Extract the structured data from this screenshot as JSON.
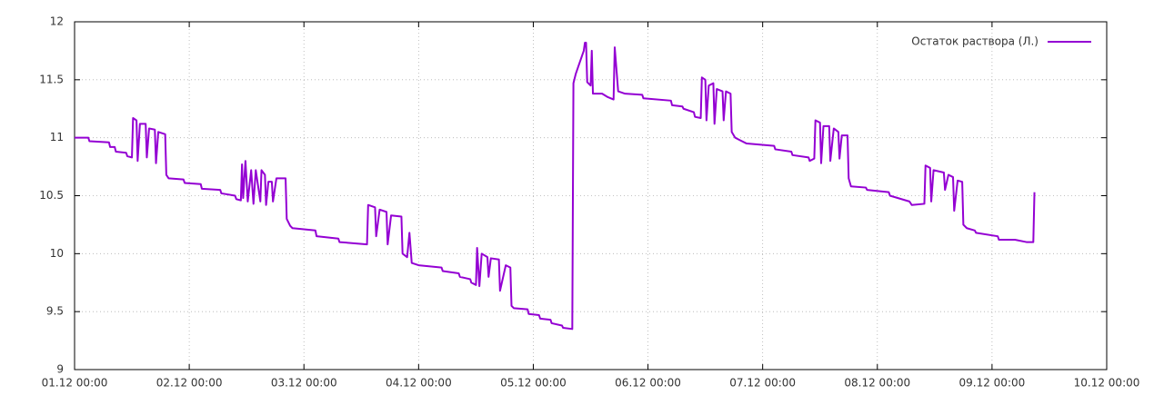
{
  "chart_data": {
    "type": "line",
    "legend": "top-right",
    "grid": true,
    "xlim": [
      0,
      9
    ],
    "xticks": [
      {
        "value": 0,
        "label": "01.12 00:00"
      },
      {
        "value": 1,
        "label": "02.12 00:00"
      },
      {
        "value": 2,
        "label": "03.12 00:00"
      },
      {
        "value": 3,
        "label": "04.12 00:00"
      },
      {
        "value": 4,
        "label": "05.12 00:00"
      },
      {
        "value": 5,
        "label": "06.12 00:00"
      },
      {
        "value": 6,
        "label": "07.12 00:00"
      },
      {
        "value": 7,
        "label": "08.12 00:00"
      },
      {
        "value": 8,
        "label": "09.12 00:00"
      },
      {
        "value": 9,
        "label": "10.12 00:00"
      }
    ],
    "ylim": [
      9,
      12
    ],
    "yticks": [
      9,
      9.5,
      10,
      10.5,
      11,
      11.5,
      12
    ],
    "x": [
      0,
      0.12,
      0.13,
      0.3,
      0.31,
      0.35,
      0.36,
      0.45,
      0.46,
      0.5,
      0.51,
      0.54,
      0.55,
      0.57,
      0.62,
      0.63,
      0.65,
      0.7,
      0.71,
      0.73,
      0.79,
      0.8,
      0.82,
      0.95,
      0.96,
      1.1,
      1.11,
      1.27,
      1.28,
      1.4,
      1.41,
      1.45,
      1.46,
      1.47,
      1.49,
      1.51,
      1.54,
      1.56,
      1.58,
      1.62,
      1.63,
      1.66,
      1.67,
      1.69,
      1.72,
      1.73,
      1.76,
      1.84,
      1.85,
      1.88,
      1.9,
      2.1,
      2.11,
      2.3,
      2.31,
      2.55,
      2.56,
      2.62,
      2.63,
      2.66,
      2.72,
      2.73,
      2.76,
      2.85,
      2.86,
      2.9,
      2.92,
      2.94,
      3.0,
      3.2,
      3.21,
      3.35,
      3.36,
      3.45,
      3.46,
      3.5,
      3.51,
      3.53,
      3.55,
      3.6,
      3.61,
      3.63,
      3.7,
      3.71,
      3.76,
      3.8,
      3.81,
      3.83,
      3.95,
      3.96,
      4.05,
      4.06,
      4.15,
      4.16,
      4.25,
      4.26,
      4.34,
      4.35,
      4.37,
      4.44,
      4.45,
      4.46,
      4.47,
      4.5,
      4.51,
      4.52,
      4.6,
      4.65,
      4.7,
      4.71,
      4.74,
      4.8,
      4.95,
      4.96,
      5.2,
      5.21,
      5.3,
      5.31,
      5.4,
      5.41,
      5.46,
      5.47,
      5.5,
      5.51,
      5.53,
      5.57,
      5.58,
      5.6,
      5.65,
      5.66,
      5.68,
      5.72,
      5.73,
      5.76,
      5.8,
      5.86,
      6.1,
      6.11,
      6.25,
      6.26,
      6.4,
      6.41,
      6.45,
      6.46,
      6.5,
      6.51,
      6.53,
      6.58,
      6.59,
      6.62,
      6.66,
      6.67,
      6.69,
      6.74,
      6.75,
      6.77,
      6.9,
      6.91,
      7.1,
      7.11,
      7.28,
      7.3,
      7.41,
      7.42,
      7.46,
      7.47,
      7.49,
      7.58,
      7.59,
      7.62,
      7.66,
      7.67,
      7.7,
      7.74,
      7.75,
      7.78,
      7.85,
      7.86,
      8.05,
      8.06,
      8.2,
      8.3,
      8.36,
      8.37
    ],
    "series": [
      {
        "name": "Остаток раствора (Л.)",
        "color": "#9400d3",
        "values": [
          11.0,
          11.0,
          10.97,
          10.96,
          10.92,
          10.92,
          10.88,
          10.87,
          10.84,
          10.83,
          11.17,
          11.15,
          10.8,
          11.12,
          11.12,
          10.83,
          11.08,
          11.07,
          10.78,
          11.05,
          11.03,
          10.68,
          10.65,
          10.64,
          10.61,
          10.6,
          10.56,
          10.55,
          10.52,
          10.5,
          10.47,
          10.46,
          10.77,
          10.48,
          10.8,
          10.45,
          10.72,
          10.43,
          10.72,
          10.45,
          10.72,
          10.68,
          10.42,
          10.62,
          10.62,
          10.45,
          10.65,
          10.65,
          10.3,
          10.24,
          10.22,
          10.2,
          10.15,
          10.13,
          10.1,
          10.08,
          10.42,
          10.4,
          10.15,
          10.38,
          10.36,
          10.08,
          10.33,
          10.32,
          10.0,
          9.97,
          10.18,
          9.92,
          9.9,
          9.88,
          9.85,
          9.83,
          9.8,
          9.78,
          9.75,
          9.73,
          10.05,
          9.72,
          10.0,
          9.97,
          9.8,
          9.96,
          9.95,
          9.68,
          9.9,
          9.88,
          9.55,
          9.53,
          9.52,
          9.48,
          9.47,
          9.44,
          9.43,
          9.4,
          9.38,
          9.36,
          9.35,
          11.47,
          11.55,
          11.75,
          11.82,
          11.82,
          11.48,
          11.45,
          11.75,
          11.38,
          11.38,
          11.35,
          11.33,
          11.78,
          11.4,
          11.38,
          11.37,
          11.34,
          11.32,
          11.28,
          11.27,
          11.25,
          11.22,
          11.18,
          11.17,
          11.52,
          11.5,
          11.15,
          11.45,
          11.47,
          11.12,
          11.42,
          11.4,
          11.15,
          11.4,
          11.38,
          11.05,
          11.0,
          10.98,
          10.95,
          10.93,
          10.9,
          10.88,
          10.85,
          10.83,
          10.8,
          10.82,
          11.15,
          11.13,
          10.78,
          11.1,
          11.1,
          10.8,
          11.08,
          11.05,
          10.82,
          11.02,
          11.02,
          10.65,
          10.58,
          10.57,
          10.55,
          10.53,
          10.5,
          10.45,
          10.42,
          10.43,
          10.76,
          10.74,
          10.45,
          10.72,
          10.7,
          10.55,
          10.68,
          10.66,
          10.37,
          10.63,
          10.62,
          10.25,
          10.22,
          10.2,
          10.18,
          10.15,
          10.12,
          10.12,
          10.1,
          10.1,
          10.53
        ]
      }
    ]
  }
}
